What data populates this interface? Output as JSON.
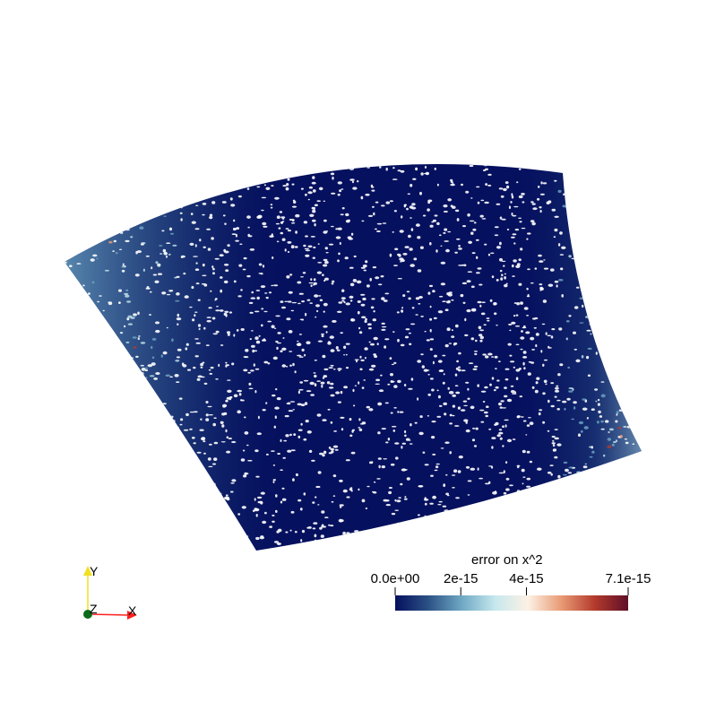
{
  "colorbar": {
    "title": "error on x^2",
    "min": 0.0,
    "max": 7.1e-15,
    "ticks": [
      {
        "label": "0.0e+00",
        "value": 0.0
      },
      {
        "label": "2e-15",
        "value": 2e-15
      },
      {
        "label": "4e-15",
        "value": 4e-15
      },
      {
        "label": "7.1e-15",
        "value": 7.1e-15
      }
    ],
    "colormap": [
      "#05105e",
      "#2c5286",
      "#6fa8c4",
      "#c6e8ee",
      "#fdf1e4",
      "#e89a74",
      "#b33a2c",
      "#5f0f28"
    ]
  },
  "axes_triad": {
    "x_label": "X",
    "y_label": "Y",
    "z_label": "Z",
    "x_color": "#ff2020",
    "y_color": "#f0e020",
    "z_color": "#0a6b1a"
  },
  "surface": {
    "base_color": "#05105e"
  }
}
